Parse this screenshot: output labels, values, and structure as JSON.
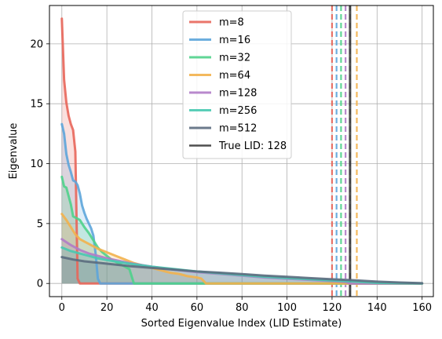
{
  "chart_data": {
    "type": "line",
    "title": "",
    "xlabel": "Sorted Eigenvalue Index (LID Estimate)",
    "ylabel": "Eigenvalue",
    "xlim": [
      -5.5,
      165
    ],
    "ylim": [
      -1.1,
      23.2
    ],
    "xticks": [
      0,
      20,
      40,
      60,
      80,
      100,
      120,
      140,
      160
    ],
    "yticks": [
      0,
      5,
      10,
      15,
      20
    ],
    "grid": true,
    "legend_position": "upper center",
    "series": [
      {
        "name": "m=8",
        "color": "#E8665A",
        "lid_estimate": 120,
        "x": [
          0,
          1,
          2,
          3,
          4,
          5,
          6,
          7,
          8,
          9,
          160
        ],
        "y": [
          22.1,
          17.0,
          15.1,
          14.0,
          13.3,
          12.8,
          11.0,
          0.4,
          0.0,
          0.0,
          0.0
        ]
      },
      {
        "name": "m=16",
        "color": "#5DA5DA",
        "lid_estimate": 122,
        "x": [
          0,
          1,
          2,
          3,
          4,
          5,
          6,
          7,
          8,
          9,
          10,
          11,
          12,
          13,
          14,
          15,
          16,
          17,
          160
        ],
        "y": [
          13.3,
          12.5,
          10.8,
          9.9,
          9.3,
          8.6,
          8.5,
          8.2,
          7.5,
          6.5,
          5.9,
          5.4,
          5.0,
          4.6,
          4.0,
          2.5,
          0.4,
          0.0,
          0.0
        ]
      },
      {
        "name": "m=32",
        "color": "#4FD18B",
        "lid_estimate": 124,
        "x": [
          0,
          1,
          2,
          3,
          4,
          5,
          8,
          10,
          12,
          14,
          16,
          18,
          20,
          22,
          24,
          26,
          28,
          30,
          31,
          32,
          160
        ],
        "y": [
          8.9,
          8.1,
          8.0,
          7.3,
          6.6,
          5.6,
          5.3,
          4.7,
          4.2,
          3.6,
          3.0,
          2.6,
          2.3,
          2.0,
          1.8,
          1.6,
          1.4,
          1.2,
          0.6,
          0.0,
          0.0
        ]
      },
      {
        "name": "m=64",
        "color": "#F2B14C",
        "lid_estimate": 131,
        "x": [
          0,
          2,
          4,
          6,
          8,
          10,
          12,
          16,
          20,
          24,
          28,
          32,
          36,
          40,
          44,
          48,
          52,
          56,
          60,
          62,
          63,
          64,
          160
        ],
        "y": [
          5.8,
          5.3,
          4.7,
          4.1,
          3.7,
          3.5,
          3.3,
          2.9,
          2.6,
          2.3,
          2.0,
          1.7,
          1.5,
          1.3,
          1.1,
          0.9,
          0.8,
          0.6,
          0.5,
          0.4,
          0.2,
          0.0,
          0.0
        ]
      },
      {
        "name": "m=128",
        "color": "#B07CC6",
        "lid_estimate": 126,
        "x": [
          0,
          4,
          8,
          12,
          16,
          20,
          30,
          40,
          50,
          60,
          70,
          80,
          90,
          100,
          110,
          120,
          126,
          128,
          160
        ],
        "y": [
          3.7,
          3.2,
          2.8,
          2.5,
          2.3,
          2.1,
          1.7,
          1.4,
          1.15,
          0.95,
          0.8,
          0.65,
          0.5,
          0.4,
          0.3,
          0.2,
          0.12,
          0.0,
          0.0
        ]
      },
      {
        "name": "m=256",
        "color": "#48C9B0",
        "lid_estimate": 128,
        "x": [
          0,
          4,
          8,
          12,
          16,
          20,
          30,
          40,
          50,
          60,
          70,
          80,
          90,
          100,
          110,
          120,
          128,
          140,
          150,
          160
        ],
        "y": [
          3.0,
          2.7,
          2.5,
          2.3,
          2.1,
          1.95,
          1.65,
          1.4,
          1.2,
          1.0,
          0.85,
          0.7,
          0.55,
          0.45,
          0.35,
          0.25,
          0.18,
          0.05,
          0.02,
          0.0
        ]
      },
      {
        "name": "m=512",
        "color": "#5B6B7E",
        "lid_estimate": 128,
        "x": [
          0,
          5,
          10,
          20,
          30,
          40,
          50,
          60,
          70,
          80,
          90,
          100,
          110,
          120,
          128,
          140,
          150,
          160
        ],
        "y": [
          2.2,
          2.0,
          1.85,
          1.65,
          1.45,
          1.3,
          1.15,
          1.0,
          0.9,
          0.78,
          0.65,
          0.55,
          0.45,
          0.35,
          0.28,
          0.15,
          0.08,
          0.02
        ]
      }
    ],
    "true_lid": {
      "label": "True LID: 128",
      "value": 128,
      "color": "#3B3B3B"
    }
  }
}
